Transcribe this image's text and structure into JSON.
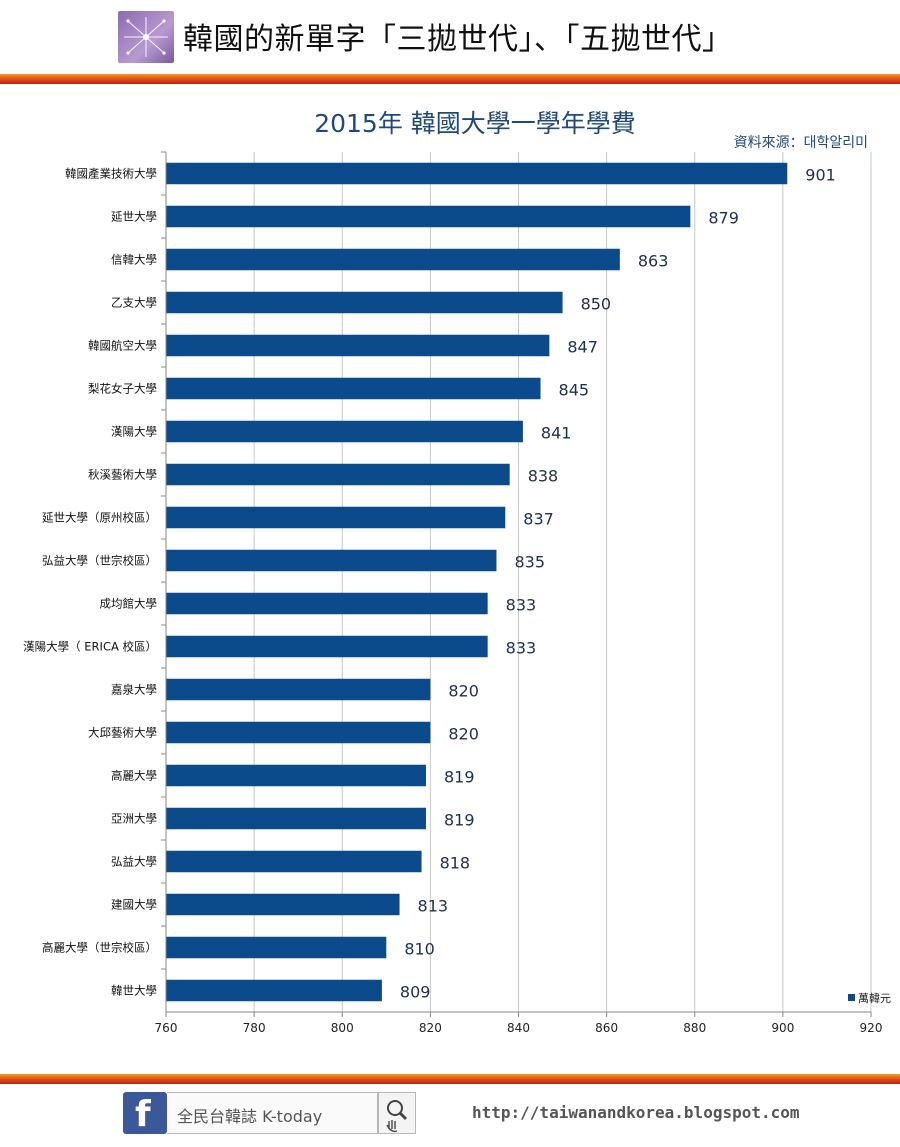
{
  "header": {
    "title": "韓國的新單字「三拋世代」、「五拋世代」",
    "logo_icon": "network-star-icon"
  },
  "chart_data": {
    "type": "bar",
    "orientation": "horizontal",
    "title": "2015年 韓國大學一學年學費",
    "source": "資料來源：대학알리미",
    "legend": "萬韓元",
    "legend_position": "bottom-right",
    "series_color": "#0b4a8b",
    "categories": [
      "韓國產業技術大學",
      "延世大學",
      "信韓大學",
      "乙支大學",
      "韓國航空大學",
      "梨花女子大學",
      "漢陽大學",
      "秋溪藝術大學",
      "延世大學（原州校區）",
      "弘益大學（世宗校區）",
      "成均館大學",
      "漢陽大學（ ERICA 校區）",
      "嘉泉大學",
      "大邱藝術大學",
      "高麗大學",
      "亞洲大學",
      "弘益大學",
      "建國大學",
      "高麗大學（世宗校區）",
      "韓世大學"
    ],
    "values": [
      901,
      879,
      863,
      850,
      847,
      845,
      841,
      838,
      837,
      835,
      833,
      833,
      820,
      820,
      819,
      819,
      818,
      813,
      810,
      809
    ],
    "xlim": [
      760,
      920
    ],
    "xticks": [
      760,
      780,
      800,
      820,
      840,
      860,
      880,
      900,
      920
    ],
    "grid": true
  },
  "footer": {
    "brand": "全民台韓誌  K-today",
    "url": "http://taiwanandkorea.blogspot.com",
    "facebook_icon": "facebook-icon",
    "search_icon": "magnifier-hand-icon"
  }
}
